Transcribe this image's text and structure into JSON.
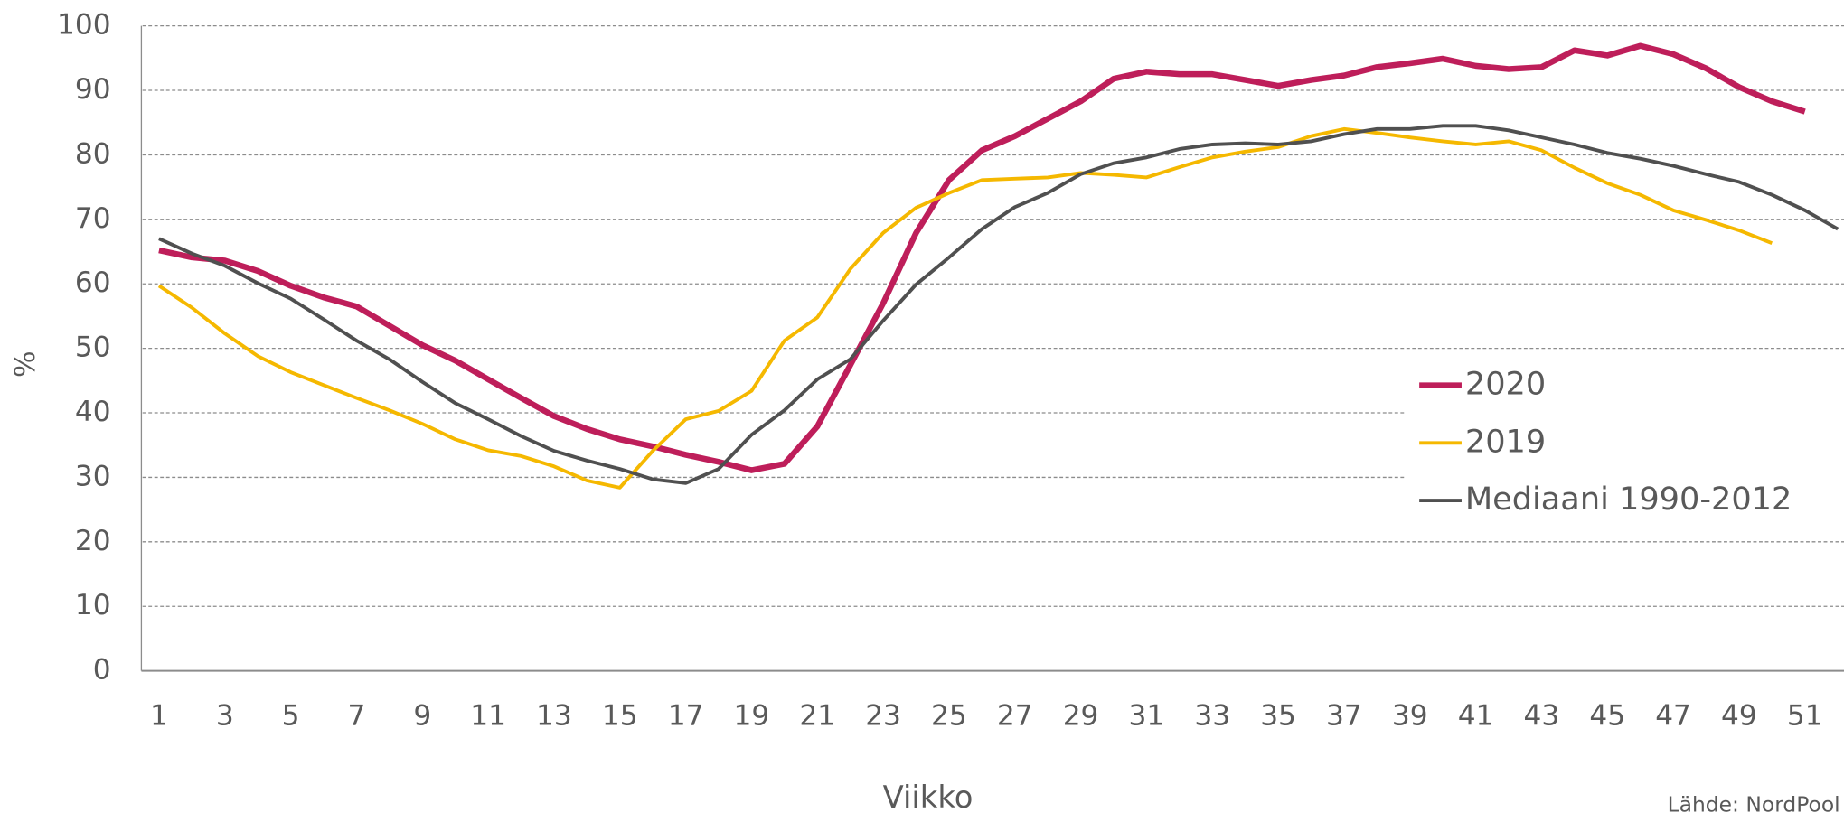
{
  "chart_data": {
    "type": "line",
    "xlabel": "Viikko",
    "ylabel": "%",
    "source": "Lähde: NordPool",
    "x": [
      1,
      2,
      3,
      4,
      5,
      6,
      7,
      8,
      9,
      10,
      11,
      12,
      13,
      14,
      15,
      16,
      17,
      18,
      19,
      20,
      21,
      22,
      23,
      24,
      25,
      26,
      27,
      28,
      29,
      30,
      31,
      32,
      33,
      34,
      35,
      36,
      37,
      38,
      39,
      40,
      41,
      42,
      43,
      44,
      45,
      46,
      47,
      48,
      49,
      50,
      51,
      52
    ],
    "xlim": [
      0.5,
      52.5
    ],
    "xticks": [
      1,
      3,
      5,
      7,
      9,
      11,
      13,
      15,
      17,
      19,
      21,
      23,
      25,
      27,
      29,
      31,
      33,
      35,
      37,
      39,
      41,
      43,
      45,
      47,
      49,
      51
    ],
    "ylim": [
      0,
      100
    ],
    "yticks": [
      0,
      10,
      20,
      30,
      40,
      50,
      60,
      70,
      80,
      90,
      100
    ],
    "grid": true,
    "legend": "center right",
    "series": [
      {
        "name": "2020",
        "color": "#be1e5a",
        "width": 5,
        "values": [
          65.2,
          64.1,
          63.6,
          62,
          59.7,
          57.9,
          56.5,
          53.5,
          50.5,
          48.1,
          45.2,
          42.3,
          39.5,
          37.5,
          35.9,
          34.8,
          33.5,
          32.4,
          31.1,
          32.1,
          37.9,
          47.4,
          57,
          67.9,
          76.1,
          80.7,
          82.9,
          85.6,
          88.3,
          91.8,
          92.9,
          92.5,
          92.5,
          91.6,
          90.7,
          91.6,
          92.3,
          93.6,
          94.2,
          94.9,
          93.8,
          93.3,
          93.6,
          96.2,
          95.4,
          96.9,
          95.6,
          93.4,
          90.5,
          88.3,
          86.7,
          null
        ]
      },
      {
        "name": "2019",
        "color": "#f5b800",
        "width": 3,
        "values": [
          59.7,
          56.3,
          52.3,
          48.8,
          46.3,
          44.3,
          42.3,
          40.4,
          38.3,
          35.9,
          34.2,
          33.3,
          31.7,
          29.5,
          28.4,
          34.1,
          39,
          40.3,
          43.4,
          51.2,
          54.8,
          62.3,
          67.9,
          71.8,
          74.1,
          76.1,
          76.3,
          76.5,
          77.2,
          76.9,
          76.5,
          78.1,
          79.6,
          80.5,
          81.2,
          82.9,
          84,
          83.4,
          82.7,
          82.1,
          81.6,
          82.1,
          80.7,
          78,
          75.6,
          73.8,
          71.4,
          69.9,
          68.3,
          66.3,
          null,
          null
        ]
      },
      {
        "name": "Mediaani 1990-2012",
        "color": "#505050",
        "width": 3,
        "values": [
          67,
          64.7,
          62.8,
          60.1,
          57.7,
          54.5,
          51.2,
          48.3,
          44.8,
          41.5,
          39,
          36.4,
          34.1,
          32.6,
          31.3,
          29.7,
          29.1,
          31.3,
          36.6,
          40.4,
          45.2,
          48.3,
          54.3,
          59.9,
          64.1,
          68.5,
          71.9,
          74.1,
          77,
          78.7,
          79.6,
          80.9,
          81.6,
          81.8,
          81.6,
          82.1,
          83.2,
          84,
          84,
          84.5,
          84.5,
          83.8,
          82.7,
          81.6,
          80.3,
          79.4,
          78.3,
          77,
          75.8,
          73.8,
          71.4,
          68.5
        ]
      }
    ]
  }
}
